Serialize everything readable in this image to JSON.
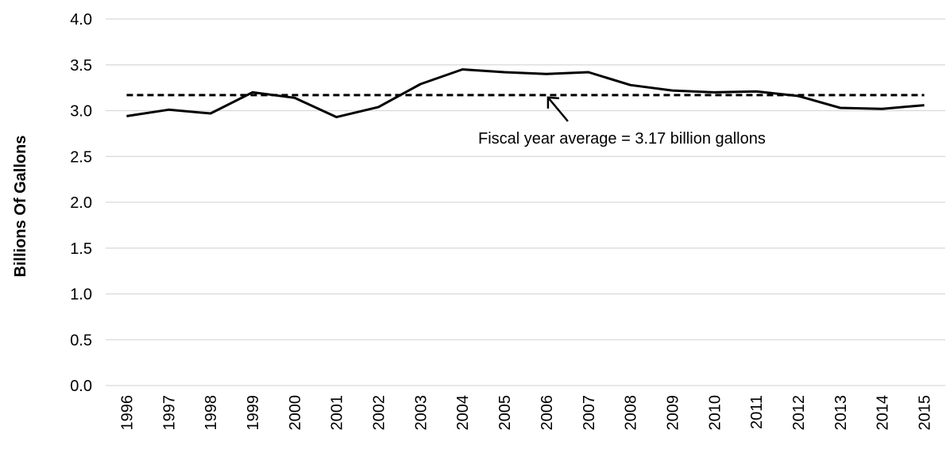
{
  "chart_data": {
    "type": "line",
    "title": "",
    "xlabel": "",
    "ylabel": "Billions Of Gallons",
    "ylim": [
      0,
      4.0
    ],
    "yticks": [
      "0.0",
      "0.5",
      "1.0",
      "1.5",
      "2.0",
      "2.5",
      "3.0",
      "3.5",
      "4.0"
    ],
    "grid": "horizontal",
    "categories": [
      "1996",
      "1997",
      "1998",
      "1999",
      "2000",
      "2001",
      "2002",
      "2003",
      "2004",
      "2005",
      "2006",
      "2007",
      "2008",
      "2009",
      "2010",
      "2011",
      "2012",
      "2013",
      "2014",
      "2015"
    ],
    "series": [
      {
        "values": [
          2.94,
          3.01,
          2.97,
          3.2,
          3.14,
          2.93,
          3.04,
          3.29,
          3.45,
          3.42,
          3.4,
          3.42,
          3.28,
          3.22,
          3.2,
          3.21,
          3.16,
          3.03,
          3.02,
          3.06
        ],
        "color": "#000000"
      }
    ],
    "reference_line": {
      "value": 3.17,
      "style": "dashed",
      "color": "#000000"
    },
    "annotation": {
      "text": "Fiscal year average = 3.17 billion gallons",
      "points_to_category": "2006"
    },
    "colors": {
      "line": "#000000",
      "grid": "#d9d9d9",
      "text": "#000000"
    }
  }
}
